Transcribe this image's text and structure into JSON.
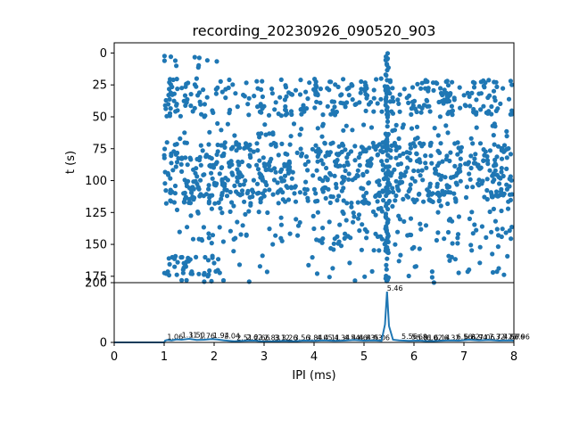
{
  "chart_data": [
    {
      "type": "scatter",
      "title": "recording_20230926_090520_903",
      "xlabel": "",
      "ylabel": "t (s)",
      "xlim": [
        0,
        8
      ],
      "ylim": [
        180,
        -8
      ],
      "y_inverted": true,
      "yticks": [
        0,
        25,
        50,
        75,
        100,
        125,
        150,
        175
      ],
      "marker_color": "#1f77b4",
      "description_of_points": "Interspike-interval raster: each dot is an IPI (ms) occurring at time t (s). Dots fill x 1.0–8.0 ms, densest in bands t≈20–50 s and t≈70–115 s, with clusters near x≈1.2–2.0 ms at t≈160–180 s and a column at x≈5.46 ms.",
      "bands": [
        {
          "t_range": [
            2,
            12
          ],
          "x_range": [
            1.0,
            2.2
          ],
          "density": 0.55
        },
        {
          "t_range": [
            20,
            50
          ],
          "x_range": [
            1.0,
            8.0
          ],
          "density": 1.0
        },
        {
          "t_range": [
            55,
            68
          ],
          "x_range": [
            1.0,
            8.0
          ],
          "density": 0.35
        },
        {
          "t_range": [
            70,
            118
          ],
          "x_range": [
            1.0,
            8.0
          ],
          "density": 1.3
        },
        {
          "t_range": [
            118,
            150
          ],
          "x_range": [
            1.0,
            8.0
          ],
          "density": 0.35
        },
        {
          "t_range": [
            158,
            180
          ],
          "x_range": [
            1.0,
            2.1
          ],
          "density": 1.2
        },
        {
          "t_range": [
            140,
            180
          ],
          "x_range": [
            2.1,
            8.0
          ],
          "density": 0.18
        }
      ],
      "column": {
        "x": 5.46,
        "t_range": [
          0,
          180
        ],
        "density": 0.6
      }
    },
    {
      "type": "line",
      "xlabel": "IPI (ms)",
      "ylabel": "",
      "xlim": [
        0,
        8
      ],
      "ylim": [
        0,
        200
      ],
      "xticks": [
        0,
        1,
        2,
        3,
        4,
        5,
        6,
        7,
        8
      ],
      "yticks": [
        0,
        200
      ],
      "line_color": "#1f77b4",
      "x": [
        0,
        0.5,
        1.0,
        1.02,
        1.06,
        1.15,
        1.25,
        1.35,
        1.5,
        1.65,
        1.8,
        1.95,
        2.05,
        2.2,
        2.4,
        2.6,
        2.8,
        3.0,
        3.2,
        3.4,
        3.6,
        3.8,
        4.0,
        4.2,
        4.4,
        4.6,
        4.8,
        5.0,
        5.2,
        5.35,
        5.42,
        5.46,
        5.5,
        5.58,
        5.7,
        5.9,
        6.1,
        6.3,
        6.5,
        6.7,
        6.9,
        7.1,
        7.3,
        7.5,
        7.7,
        7.9,
        8.0
      ],
      "y": [
        0,
        0,
        0,
        6,
        8,
        7,
        10,
        9,
        12,
        8,
        9,
        11,
        10,
        7,
        4,
        5,
        6,
        3,
        4,
        5,
        4,
        6,
        5,
        7,
        5,
        6,
        8,
        6,
        7,
        5,
        60,
        170,
        55,
        9,
        7,
        5,
        6,
        4,
        5,
        7,
        6,
        9,
        7,
        8,
        6,
        7,
        6
      ],
      "annotations": [
        {
          "x": 1.06,
          "y": 8,
          "text": "1.06"
        },
        {
          "x": 1.35,
          "y": 13,
          "text": "1.31"
        },
        {
          "x": 1.5,
          "y": 14,
          "text": "1.50"
        },
        {
          "x": 1.7,
          "y": 11,
          "text": "1.76"
        },
        {
          "x": 1.98,
          "y": 12,
          "text": "1.94"
        },
        {
          "x": 2.2,
          "y": 11,
          "text": "2.04"
        },
        {
          "x": 2.45,
          "y": 5,
          "text": "2.51"
        },
        {
          "x": 2.65,
          "y": 6,
          "text": "2.62"
        },
        {
          "x": 2.8,
          "y": 5,
          "text": "2.66"
        },
        {
          "x": 3.0,
          "y": 5,
          "text": "2.83"
        },
        {
          "x": 3.2,
          "y": 5,
          "text": "3.12"
        },
        {
          "x": 3.35,
          "y": 5,
          "text": "3.26"
        },
        {
          "x": 3.6,
          "y": 5,
          "text": "3.56"
        },
        {
          "x": 3.85,
          "y": 5,
          "text": "3.84"
        },
        {
          "x": 4.05,
          "y": 5,
          "text": "4.05"
        },
        {
          "x": 4.2,
          "y": 5,
          "text": "4.11"
        },
        {
          "x": 4.4,
          "y": 5,
          "text": "4.34"
        },
        {
          "x": 4.6,
          "y": 5,
          "text": "4.54"
        },
        {
          "x": 4.75,
          "y": 5,
          "text": "4.66"
        },
        {
          "x": 4.9,
          "y": 5,
          "text": "4.83"
        },
        {
          "x": 5.05,
          "y": 5,
          "text": "4.93"
        },
        {
          "x": 5.2,
          "y": 5,
          "text": "5.06"
        },
        {
          "x": 5.46,
          "y": 170,
          "text": "5.46"
        },
        {
          "x": 5.75,
          "y": 9,
          "text": "5.56"
        },
        {
          "x": 5.95,
          "y": 8,
          "text": "5.68"
        },
        {
          "x": 6.05,
          "y": 5,
          "text": "5.81"
        },
        {
          "x": 6.25,
          "y": 5,
          "text": "6.02"
        },
        {
          "x": 6.4,
          "y": 5,
          "text": "6.14"
        },
        {
          "x": 6.6,
          "y": 5,
          "text": "6.32"
        },
        {
          "x": 6.85,
          "y": 7,
          "text": "6.56"
        },
        {
          "x": 7.0,
          "y": 7,
          "text": "6.82"
        },
        {
          "x": 7.15,
          "y": 6,
          "text": "6.94"
        },
        {
          "x": 7.3,
          "y": 6,
          "text": "7.06"
        },
        {
          "x": 7.5,
          "y": 7,
          "text": "7.32"
        },
        {
          "x": 7.65,
          "y": 8,
          "text": "7.47"
        },
        {
          "x": 7.78,
          "y": 8,
          "text": "7.56"
        },
        {
          "x": 7.9,
          "y": 8,
          "text": "7.76"
        },
        {
          "x": 8.0,
          "y": 8,
          "text": "7.96"
        }
      ]
    }
  ]
}
